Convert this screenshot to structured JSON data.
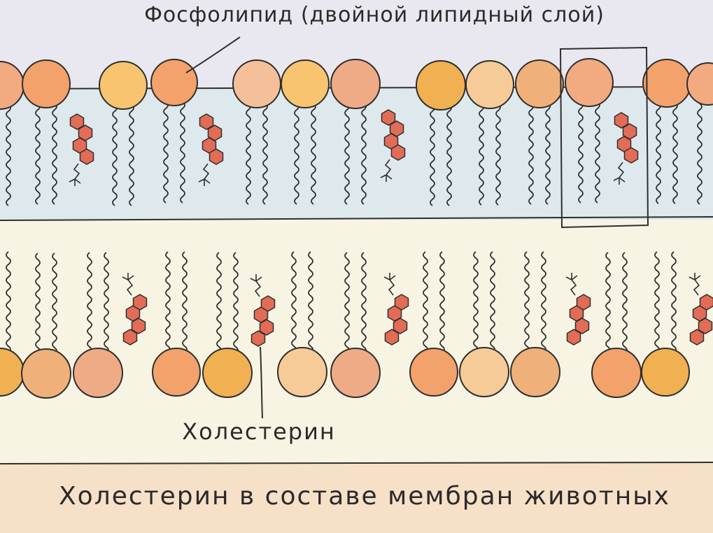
{
  "labels": {
    "phospholipid": "Фосфолипид (двойной липидный слой)",
    "cholesterol": "Холестерин",
    "caption": "Холестерин в составе мембран животных"
  },
  "colors": {
    "background_top": "#e9e7ef",
    "upper_leaflet": "#dde9ec",
    "lower_leaflet": "#f8f4e3",
    "caption_band": "#f7e0c8",
    "head_palette": [
      "#f2a26a",
      "#f8c470",
      "#f2aa80",
      "#f5bf9a",
      "#f6cb98",
      "#f0b079",
      "#efab86",
      "#f1b052"
    ],
    "cholesterol_ring": "#e36c57",
    "outline": "#2f2f2f"
  },
  "icons": [
    "phospholipid-head-icon",
    "lipid-tail-icon",
    "cholesterol-molecule-icon",
    "selection-box-icon"
  ]
}
